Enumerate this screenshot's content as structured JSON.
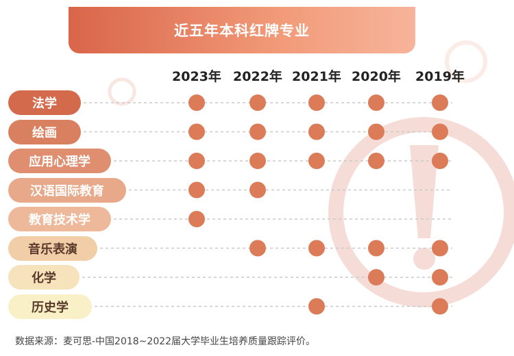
{
  "title": "近五年本科红牌专业",
  "source": "数据来源：麦可思-中国2018~2022届大学毕业生培养质量跟踪评价。",
  "colors": {
    "dot": "#db7b58",
    "line": "#c9c9c9",
    "pill_fills": [
      "#d46a4c",
      "#d98060",
      "#e08e70",
      "#e8a98a",
      "#edb99a",
      "#f1cda8",
      "#f6e2bb",
      "#faf0c8"
    ],
    "pill_text": [
      "#ffffff",
      "#ffffff",
      "#ffffff",
      "#ffffff",
      "#ffffff",
      "#5a3a2a",
      "#5a3a2a",
      "#5a3a2a"
    ]
  },
  "chart_data": {
    "type": "table",
    "title": "近五年本科红牌专业",
    "columns": [
      "2023年",
      "2022年",
      "2021年",
      "2020年",
      "2019年"
    ],
    "rows": [
      {
        "label": "法学",
        "marks": [
          1,
          1,
          1,
          1,
          1
        ]
      },
      {
        "label": "绘画",
        "marks": [
          1,
          1,
          1,
          1,
          1
        ]
      },
      {
        "label": "应用心理学",
        "marks": [
          1,
          1,
          1,
          1,
          1
        ]
      },
      {
        "label": "汉语国际教育",
        "marks": [
          1,
          1,
          0,
          0,
          0
        ]
      },
      {
        "label": "教育技术学",
        "marks": [
          1,
          0,
          0,
          0,
          0
        ]
      },
      {
        "label": "音乐表演",
        "marks": [
          0,
          1,
          1,
          1,
          1
        ]
      },
      {
        "label": "化学",
        "marks": [
          0,
          0,
          0,
          1,
          1
        ]
      },
      {
        "label": "历史学",
        "marks": [
          0,
          0,
          1,
          0,
          1
        ]
      }
    ]
  }
}
